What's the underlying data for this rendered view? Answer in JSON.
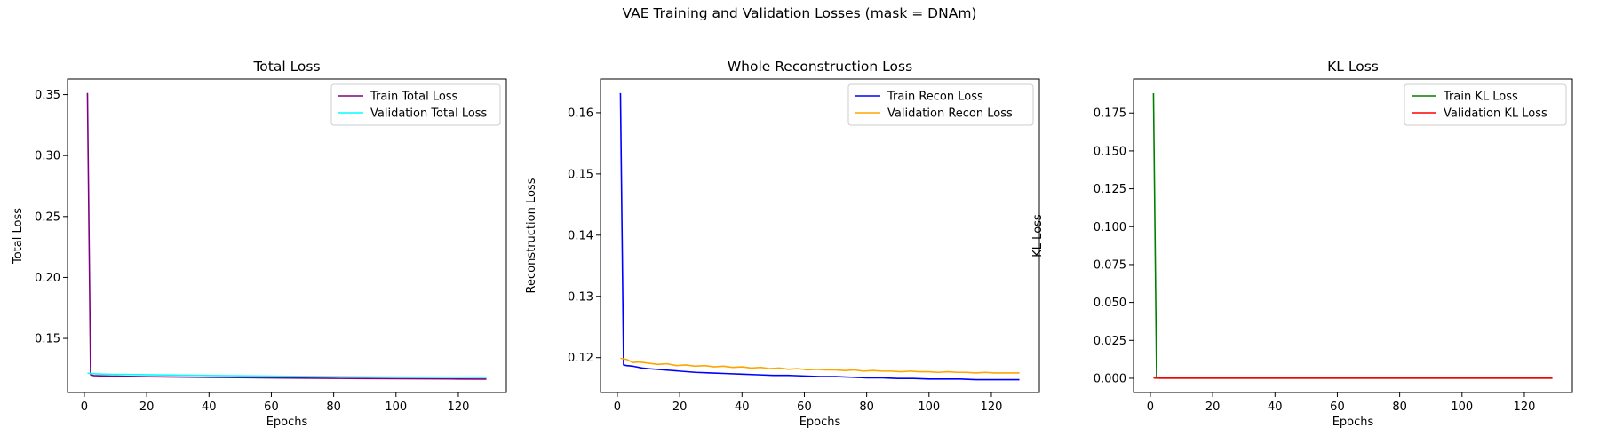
{
  "figure": {
    "suptitle": "VAE Training and Validation Losses (mask = DNAm)"
  },
  "chart_data": [
    {
      "type": "line",
      "title": "Total Loss",
      "xlabel": "Epochs",
      "ylabel": "Total Loss",
      "xlim": [
        -5.4,
        135.4
      ],
      "ylim": [
        0.1056,
        0.3628
      ],
      "xticks": [
        0,
        20,
        40,
        60,
        80,
        100,
        120
      ],
      "yticks": [
        0.15,
        0.2,
        0.25,
        0.3,
        0.35
      ],
      "ytick_labels": [
        "0.15",
        "0.20",
        "0.25",
        "0.30",
        "0.35"
      ],
      "legend_loc": "upper right",
      "grid": false,
      "series": [
        {
          "name": "Train Total Loss",
          "color": "#800080",
          "x": [
            1,
            2,
            3,
            5,
            10,
            20,
            30,
            40,
            50,
            60,
            70,
            80,
            90,
            100,
            110,
            120,
            129
          ],
          "y": [
            0.3513,
            0.1202,
            0.1195,
            0.1193,
            0.119,
            0.1186,
            0.1183,
            0.118,
            0.1178,
            0.1176,
            0.1174,
            0.1172,
            0.117,
            0.1169,
            0.1168,
            0.1167,
            0.1166
          ]
        },
        {
          "name": "Validation Total Loss",
          "color": "#00ffff",
          "x": [
            1,
            2,
            3,
            5,
            10,
            20,
            30,
            40,
            50,
            60,
            70,
            80,
            90,
            100,
            110,
            120,
            129
          ],
          "y": [
            0.1215,
            0.1212,
            0.121,
            0.1208,
            0.1205,
            0.1202,
            0.1199,
            0.1196,
            0.1193,
            0.119,
            0.1188,
            0.1186,
            0.1184,
            0.1183,
            0.1182,
            0.1181,
            0.118
          ]
        }
      ]
    },
    {
      "type": "line",
      "title": "Whole Reconstruction Loss",
      "xlabel": "Epochs",
      "ylabel": "Reconstruction Loss",
      "xlim": [
        -5.4,
        135.4
      ],
      "ylim": [
        0.1143,
        0.1655
      ],
      "xticks": [
        0,
        20,
        40,
        60,
        80,
        100,
        120
      ],
      "yticks": [
        0.12,
        0.13,
        0.14,
        0.15,
        0.16
      ],
      "ytick_labels": [
        "0.12",
        "0.13",
        "0.14",
        "0.15",
        "0.16"
      ],
      "legend_loc": "upper right",
      "grid": false,
      "series": [
        {
          "name": "Train Recon Loss",
          "color": "#0000ff",
          "x": [
            1,
            2,
            3,
            5,
            8,
            10,
            15,
            20,
            25,
            30,
            35,
            40,
            45,
            50,
            55,
            60,
            65,
            70,
            75,
            80,
            85,
            90,
            95,
            100,
            105,
            110,
            115,
            120,
            125,
            129
          ],
          "y": [
            0.1632,
            0.1188,
            0.1187,
            0.1186,
            0.1183,
            0.1182,
            0.118,
            0.1178,
            0.1176,
            0.1175,
            0.1174,
            0.1173,
            0.1172,
            0.1171,
            0.1171,
            0.117,
            0.1169,
            0.1169,
            0.1168,
            0.1167,
            0.1167,
            0.1166,
            0.1166,
            0.1165,
            0.1165,
            0.1165,
            0.1164,
            0.1164,
            0.1164,
            0.1164
          ]
        },
        {
          "name": "Validation Recon Loss",
          "color": "#ffa500",
          "x": [
            1,
            3,
            5,
            7,
            10,
            13,
            16,
            19,
            22,
            25,
            28,
            31,
            34,
            37,
            40,
            43,
            46,
            49,
            52,
            55,
            58,
            61,
            64,
            67,
            70,
            73,
            76,
            79,
            82,
            85,
            88,
            91,
            94,
            97,
            100,
            103,
            106,
            109,
            112,
            115,
            118,
            121,
            124,
            127,
            129
          ],
          "y": [
            0.1199,
            0.1197,
            0.1192,
            0.1193,
            0.1191,
            0.1189,
            0.119,
            0.1187,
            0.1188,
            0.1186,
            0.1187,
            0.1185,
            0.1186,
            0.1184,
            0.1185,
            0.1183,
            0.1184,
            0.1182,
            0.1183,
            0.1181,
            0.1182,
            0.118,
            0.1181,
            0.118,
            0.118,
            0.1179,
            0.118,
            0.1178,
            0.1179,
            0.1178,
            0.1178,
            0.1177,
            0.1178,
            0.1177,
            0.1177,
            0.1176,
            0.1177,
            0.1176,
            0.1176,
            0.1175,
            0.1176,
            0.1175,
            0.1175,
            0.1175,
            0.1175
          ]
        }
      ]
    },
    {
      "type": "line",
      "title": "KL Loss",
      "xlabel": "Epochs",
      "ylabel": "KL Loss",
      "xlim": [
        -5.4,
        135.4
      ],
      "ylim": [
        -0.0094,
        0.1974
      ],
      "xticks": [
        0,
        20,
        40,
        60,
        80,
        100,
        120
      ],
      "yticks": [
        0.0,
        0.025,
        0.05,
        0.075,
        0.1,
        0.125,
        0.15,
        0.175
      ],
      "ytick_labels": [
        "0.000",
        "0.025",
        "0.050",
        "0.075",
        "0.100",
        "0.125",
        "0.150",
        "0.175"
      ],
      "legend_loc": "upper right",
      "grid": false,
      "series": [
        {
          "name": "Train KL Loss",
          "color": "#008000",
          "x": [
            1,
            2,
            3,
            10,
            20,
            40,
            60,
            80,
            100,
            120,
            129
          ],
          "y": [
            0.188,
            0.0005,
            0.0001,
            0.0001,
            0.0001,
            0.0001,
            0.0001,
            0.0001,
            0.0001,
            0.0001,
            0.0001
          ]
        },
        {
          "name": "Validation KL Loss",
          "color": "#ff0000",
          "x": [
            1,
            2,
            3,
            10,
            20,
            40,
            60,
            80,
            100,
            120,
            129
          ],
          "y": [
            0.0002,
            0.0001,
            0.0001,
            0.0001,
            0.0001,
            0.0001,
            0.0001,
            0.0001,
            0.0001,
            0.0001,
            0.0001
          ]
        }
      ]
    }
  ]
}
